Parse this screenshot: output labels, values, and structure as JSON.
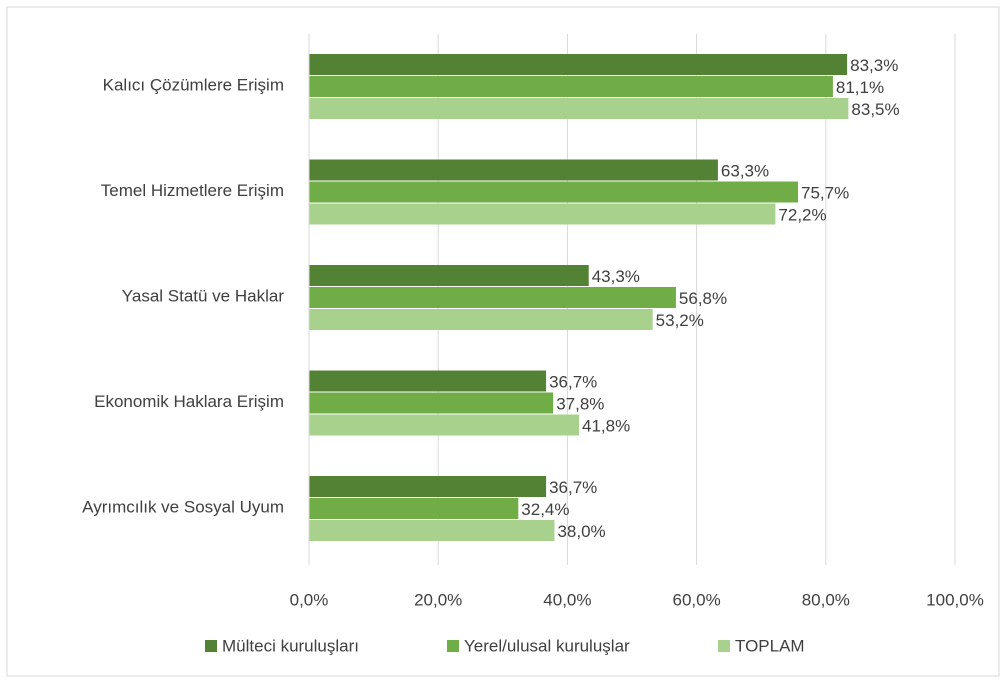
{
  "chart_data": {
    "type": "barh",
    "categories": [
      "Kalıcı Çözümlere Erişim",
      "Temel Hizmetlere Erişim",
      "Yasal Statü ve Haklar",
      "Ekonomik Haklara Erişim",
      "Ayrımcılık ve Sosyal Uyum"
    ],
    "series": [
      {
        "name": "Mülteci kuruluşları",
        "color": "#548235",
        "values": [
          83.3,
          63.3,
          43.3,
          36.7,
          36.7
        ],
        "value_labels": [
          "83,3%",
          "63,3%",
          "43,3%",
          "36,7%",
          "36,7%"
        ]
      },
      {
        "name": "Yerel/ulusal kuruluşlar",
        "color": "#70ad47",
        "values": [
          81.1,
          75.7,
          56.8,
          37.8,
          32.4
        ],
        "value_labels": [
          "81,1%",
          "75,7%",
          "56,8%",
          "37,8%",
          "32,4%"
        ]
      },
      {
        "name": "TOPLAM",
        "color": "#a9d18e",
        "values": [
          83.5,
          72.2,
          53.2,
          41.8,
          38.0
        ],
        "value_labels": [
          "83,5%",
          "72,2%",
          "53,2%",
          "41,8%",
          "38,0%"
        ]
      }
    ],
    "xlim": [
      0,
      100
    ],
    "xticks": [
      {
        "value": 0,
        "label": "0,0%"
      },
      {
        "value": 20,
        "label": "20,0%"
      },
      {
        "value": 40,
        "label": "40,0%"
      },
      {
        "value": 60,
        "label": "60,0%"
      },
      {
        "value": 80,
        "label": "80,0%"
      },
      {
        "value": 100,
        "label": "100,0%"
      }
    ],
    "grid": true,
    "legend": "bottom"
  }
}
